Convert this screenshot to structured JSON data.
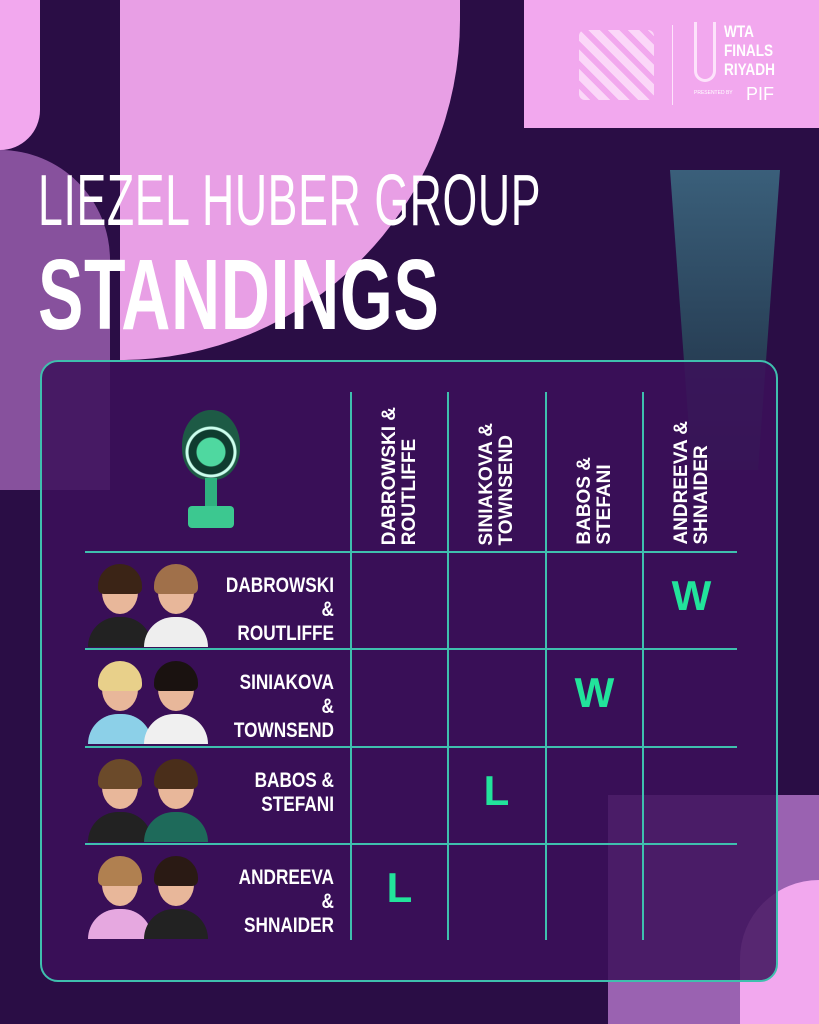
{
  "logos": {
    "event": "WTA FINALS RIYADH",
    "sponsor": "PIF",
    "presented": "PRESENTED BY"
  },
  "header": {
    "line1": "LIEZEL HUBER GROUP",
    "line2": "STANDINGS"
  },
  "columns": [
    "DABROWSKI &\nROUTLIFFE",
    "SINIAKOVA &\nTOWNSEND",
    "BABOS &\nSTEFANI",
    "ANDREEVA &\nSHNAIDER"
  ],
  "rows": [
    {
      "team": "DABROWSKI &\nROUTLIFFE",
      "results": [
        "",
        "",
        "",
        "W"
      ]
    },
    {
      "team": "SINIAKOVA &\nTOWNSEND",
      "results": [
        "",
        "",
        "W",
        ""
      ]
    },
    {
      "team": "BABOS &\nSTEFANI",
      "results": [
        "",
        "L",
        "",
        ""
      ]
    },
    {
      "team": "ANDREEVA &\nSHNAIDER",
      "results": [
        "L",
        "",
        "",
        ""
      ]
    }
  ],
  "colors": {
    "background": "#2a0d45",
    "accent_pink": "#f2a8ee",
    "grid_teal": "#3fbfae",
    "result_green": "#22e39b"
  }
}
